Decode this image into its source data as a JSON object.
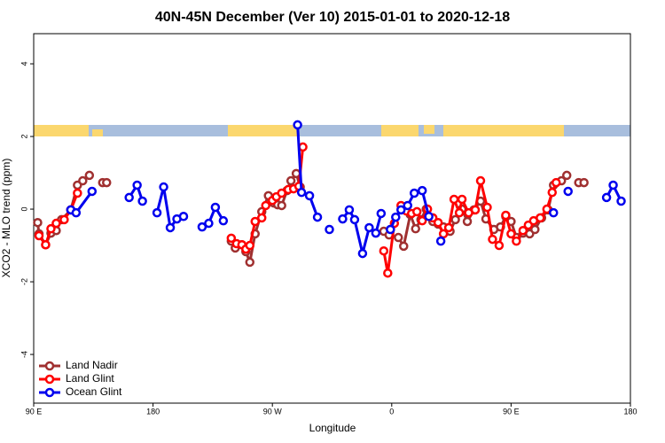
{
  "chart_data": {
    "type": "line",
    "title": "40N-45N December (Ver 10)   2015-01-01 to 2020-12-18",
    "x_label": "Longitude",
    "y_label": "XCO2 - MLO trend (ppm)",
    "xlim": [
      90,
      540
    ],
    "ylim": [
      -5.34,
      4.83
    ],
    "xticks": [
      {
        "value": 90,
        "label": "90 E"
      },
      180,
      {
        "value": 270,
        "label": "90 W"
      },
      {
        "value": 360,
        "label": "0"
      },
      {
        "value": 450,
        "label": "90 E"
      },
      {
        "value": 540,
        "label": "180"
      }
    ],
    "yticks": [
      -4,
      -2,
      0,
      2,
      4
    ],
    "legend": "bottom-left",
    "series": [
      {
        "name": "Land Nadir",
        "color": "#a03030",
        "x": [
          93,
          94,
          99,
          103,
          107,
          111,
          118,
          123,
          127,
          132,
          null,
          142,
          145,
          null,
          239,
          242,
          247,
          250,
          253,
          257,
          262,
          267,
          271,
          274,
          277,
          281,
          284,
          288,
          291,
          null,
          354,
          358,
          365,
          369,
          374,
          378,
          382,
          386,
          391,
          395,
          399,
          404,
          408,
          413,
          417,
          422,
          427,
          431,
          437,
          442,
          446,
          450,
          454,
          459,
          464,
          468,
          473,
          478,
          482,
          488,
          492,
          null,
          501,
          505
        ],
        "values": [
          -0.37,
          -0.68,
          -0.98,
          -0.66,
          -0.59,
          -0.29,
          -0.02,
          0.66,
          0.78,
          0.93,
          null,
          0.73,
          0.73,
          null,
          -0.88,
          -1.07,
          -0.98,
          -1.17,
          -1.46,
          -0.68,
          -0.07,
          0.37,
          0.17,
          0.12,
          0.1,
          0.51,
          0.78,
          0.98,
          0.61,
          null,
          -0.61,
          -0.71,
          -0.78,
          -1.02,
          -0.15,
          -0.54,
          -0.29,
          0,
          -0.34,
          -0.41,
          -0.49,
          -0.61,
          -0.29,
          0,
          -0.34,
          -0.02,
          0.22,
          -0.27,
          -0.56,
          -0.49,
          -0.2,
          -0.34,
          -0.78,
          -0.66,
          -0.68,
          -0.56,
          -0.24,
          -0.02,
          0.66,
          0.78,
          0.93,
          null,
          0.73,
          0.73
        ]
      },
      {
        "name": "Land Glint",
        "color": "#ff0000",
        "x": [
          94,
          99,
          103,
          107,
          113,
          118,
          123,
          null,
          239,
          243,
          247,
          250,
          253,
          257,
          262,
          265,
          270,
          273,
          277,
          282,
          286,
          290,
          293,
          null,
          354,
          357,
          362,
          367,
          371,
          375,
          379,
          383,
          387,
          391,
          395,
          399,
          403,
          407,
          411,
          413,
          418,
          423,
          427,
          432,
          436,
          441,
          446,
          450,
          454,
          459,
          463,
          467,
          472,
          477,
          481,
          484
        ],
        "values": [
          -0.73,
          -0.98,
          -0.54,
          -0.39,
          -0.29,
          -0.02,
          0.44,
          null,
          -0.8,
          -0.95,
          -0.98,
          -1.1,
          -1.0,
          -0.34,
          -0.24,
          0.1,
          0.24,
          0.34,
          0.44,
          0.54,
          0.56,
          0.63,
          1.71,
          null,
          -1.15,
          -1.76,
          -0.39,
          0.1,
          -0.05,
          -0.12,
          -0.07,
          -0.32,
          0,
          -0.24,
          -0.37,
          -0.68,
          -0.51,
          0.27,
          -0.1,
          0.27,
          -0.1,
          -0.02,
          0.78,
          0.05,
          -0.83,
          -1.0,
          -0.17,
          -0.68,
          -0.88,
          -0.59,
          -0.44,
          -0.32,
          -0.24,
          0,
          0.46,
          0.73
        ]
      },
      {
        "name": "Ocean Glint",
        "color": "#0000ee",
        "x": [
          118,
          122,
          134,
          null,
          162,
          168,
          172,
          null,
          183,
          188,
          193,
          198,
          203,
          null,
          217,
          222,
          227,
          233,
          null,
          289,
          292,
          298,
          304,
          null,
          313,
          null,
          323,
          328,
          332,
          338,
          343,
          348,
          352,
          null,
          359,
          363,
          367,
          372,
          377,
          383,
          388,
          null,
          397,
          null,
          482,
          null,
          493,
          null,
          522,
          527,
          533
        ],
        "values": [
          -0.02,
          -0.1,
          0.49,
          null,
          0.32,
          0.66,
          0.22,
          null,
          -0.1,
          0.61,
          -0.51,
          -0.27,
          -0.2,
          null,
          -0.49,
          -0.39,
          0.05,
          -0.32,
          null,
          2.32,
          0.46,
          0.37,
          -0.22,
          null,
          -0.56,
          null,
          -0.27,
          -0.02,
          -0.29,
          -1.22,
          -0.51,
          -0.66,
          -0.12,
          null,
          -0.56,
          -0.22,
          -0.02,
          0.1,
          0.44,
          0.51,
          -0.2,
          null,
          -0.88,
          null,
          -0.1,
          null,
          0.49,
          null,
          0.32,
          0.66,
          0.22
        ]
      }
    ]
  }
}
